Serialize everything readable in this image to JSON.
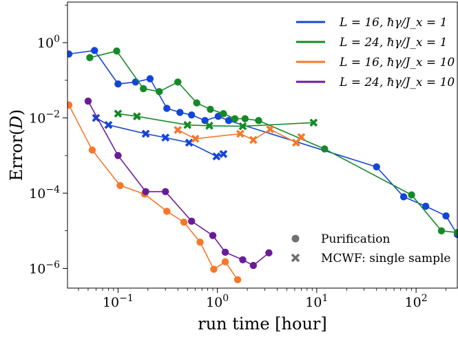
{
  "chart_data": {
    "type": "line",
    "title": "",
    "xlabel": "run time [hour]",
    "ylabel": "Error(D)",
    "xscale": "log",
    "yscale": "log",
    "xlim": [
      0.031,
      260
    ],
    "ylim": [
      3e-07,
      12
    ],
    "grid": false,
    "legend_position": "top-right",
    "x_ticks": [
      {
        "value": 0.1,
        "label": "10^-1"
      },
      {
        "value": 1,
        "label": "10^0"
      },
      {
        "value": 10,
        "label": "10^1"
      },
      {
        "value": 100,
        "label": "10^2"
      }
    ],
    "y_ticks": [
      {
        "value": 1e-06,
        "label": "10^-6"
      },
      {
        "value": 0.0001,
        "label": "10^-4"
      },
      {
        "value": 0.01,
        "label": "10^-2"
      },
      {
        "value": 1,
        "label": "10^0"
      }
    ],
    "series": [
      {
        "name": "L = 16, ħγ/J_x = 1",
        "color": "#1346d6",
        "purification": [
          [
            0.032,
            0.5
          ],
          [
            0.058,
            0.62
          ],
          [
            0.1,
            0.08
          ],
          [
            0.15,
            0.09
          ],
          [
            0.21,
            0.11
          ],
          [
            0.31,
            0.018
          ],
          [
            0.42,
            0.014
          ],
          [
            0.55,
            0.012
          ],
          [
            0.75,
            0.0085
          ],
          [
            1.02,
            0.011
          ],
          [
            1.3,
            0.0085
          ],
          [
            40,
            0.0005
          ],
          [
            75,
            8e-05
          ],
          [
            125,
            4.5e-05
          ],
          [
            200,
            2.5e-05
          ],
          [
            260,
            8e-06
          ]
        ],
        "mcwf": [
          [
            0.06,
            0.01
          ],
          [
            0.08,
            0.0065
          ],
          [
            0.19,
            0.0038
          ],
          [
            0.3,
            0.003
          ],
          [
            0.52,
            0.0022
          ],
          [
            0.98,
            0.00095
          ],
          [
            1.15,
            0.0011
          ]
        ]
      },
      {
        "name": "L = 24, ħγ/J_x = 1",
        "color": "#158a27",
        "purification": [
          [
            0.052,
            0.4
          ],
          [
            0.097,
            0.6
          ],
          [
            0.18,
            0.06
          ],
          [
            0.26,
            0.05
          ],
          [
            0.4,
            0.09
          ],
          [
            0.62,
            0.025
          ],
          [
            0.85,
            0.017
          ],
          [
            1.15,
            0.013
          ],
          [
            1.5,
            0.0095
          ],
          [
            1.9,
            0.0095
          ],
          [
            2.6,
            0.0085
          ],
          [
            12,
            0.0015
          ],
          [
            90,
            9e-05
          ],
          [
            180,
            1e-05
          ],
          [
            260,
            9e-06
          ]
        ],
        "mcwf": [
          [
            0.1,
            0.013
          ],
          [
            0.155,
            0.011
          ],
          [
            0.5,
            0.0065
          ],
          [
            0.83,
            0.0062
          ],
          [
            1.8,
            0.006
          ],
          [
            9.3,
            0.0075
          ]
        ]
      },
      {
        "name": "L = 16, ħγ/J_x = 10",
        "color": "#f7772a",
        "purification": [
          [
            0.032,
            0.022
          ],
          [
            0.055,
            0.0014
          ],
          [
            0.105,
            0.00016
          ],
          [
            0.185,
            9.5e-05
          ],
          [
            0.31,
            3.3e-05
          ],
          [
            0.46,
            1.7e-05
          ],
          [
            0.67,
            5e-06
          ],
          [
            0.92,
            9.5e-07
          ],
          [
            1.2,
            1.5e-06
          ],
          [
            1.6,
            5e-07
          ]
        ],
        "mcwf": [
          [
            0.4,
            0.0048
          ],
          [
            0.6,
            0.0028
          ],
          [
            1.7,
            0.0038
          ],
          [
            2.3,
            0.0026
          ],
          [
            3.4,
            0.005
          ],
          [
            6.2,
            0.0022
          ],
          [
            7,
            0.0031
          ]
        ]
      },
      {
        "name": "L = 24, ħγ/J_x = 10",
        "color": "#6a1b9a",
        "purification": [
          [
            0.05,
            0.028
          ],
          [
            0.1,
            0.001
          ],
          [
            0.19,
            0.00011
          ],
          [
            0.3,
            0.00011
          ],
          [
            0.55,
            1.8e-05
          ],
          [
            0.9,
            7.5e-06
          ],
          [
            1.2,
            2.7e-06
          ],
          [
            1.8,
            1.7e-06
          ],
          [
            2.3,
            1.2e-06
          ],
          [
            3.3,
            2.6e-06
          ]
        ],
        "mcwf": []
      }
    ],
    "legend": [
      {
        "label": "L = 16, ħγ/J_x = 1",
        "color": "#1346d6"
      },
      {
        "label": "L = 24, ħγ/J_x = 1",
        "color": "#158a27"
      },
      {
        "label": "L = 16, ħγ/J_x = 10",
        "color": "#f7772a"
      },
      {
        "label": "L = 24, ħγ/J_x = 10",
        "color": "#6a1b9a"
      }
    ],
    "marker_legend": [
      {
        "label": "Purification",
        "marker": "circle"
      },
      {
        "label": "MCWF: single sample",
        "marker": "cross"
      }
    ]
  }
}
